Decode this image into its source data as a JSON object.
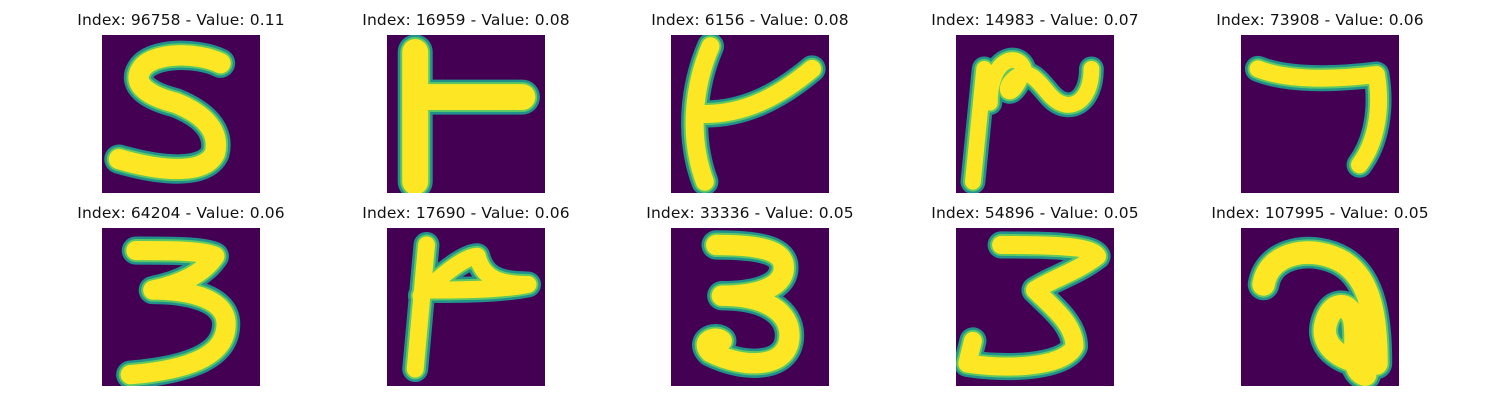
{
  "figure": {
    "panels": [
      {
        "title": "Index: 96758 - Value: 0.11",
        "image": "handwritten-digit-5"
      },
      {
        "title": "Index: 16959 - Value: 0.08",
        "image": "handwritten-glyph-t-shape"
      },
      {
        "title": "Index: 6156 - Value: 0.08",
        "image": "handwritten-glyph-slanted-t"
      },
      {
        "title": "Index: 14983 - Value: 0.07",
        "image": "handwritten-glyph-wave"
      },
      {
        "title": "Index: 73908 - Value: 0.06",
        "image": "handwritten-digit-7"
      },
      {
        "title": "Index: 64204 - Value: 0.06",
        "image": "handwritten-digit-3"
      },
      {
        "title": "Index: 17690 - Value: 0.06",
        "image": "handwritten-glyph-flag"
      },
      {
        "title": "Index: 33336 - Value: 0.05",
        "image": "handwritten-digit-3"
      },
      {
        "title": "Index: 54896 - Value: 0.05",
        "image": "handwritten-digit-3"
      },
      {
        "title": "Index: 107995 - Value: 0.05",
        "image": "handwritten-glyph-loop"
      }
    ],
    "colors": {
      "background": "#440154",
      "stroke_outer": "#21918c",
      "stroke_mid": "#5ec962",
      "stroke_core": "#fde725"
    }
  }
}
